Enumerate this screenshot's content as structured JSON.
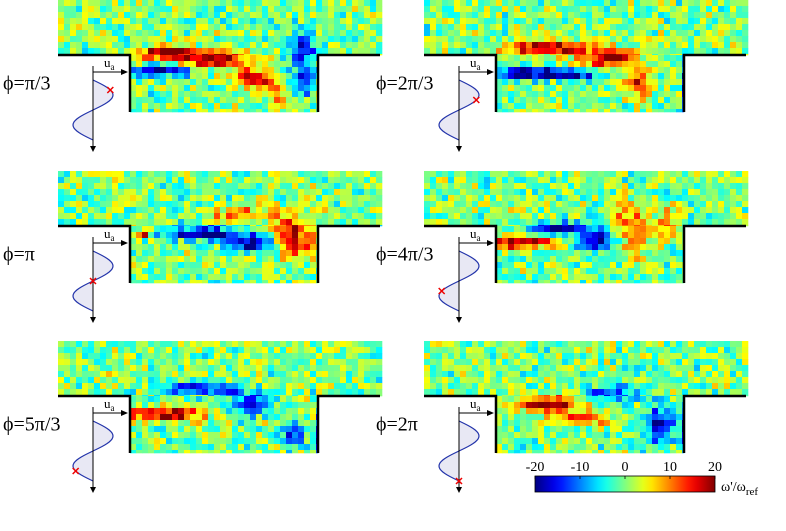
{
  "panels": [
    {
      "phase": "ϕ=π/3",
      "velocity": {
        "base": "u",
        "sub": "a"
      }
    },
    {
      "phase": "ϕ=2π/3",
      "velocity": {
        "base": "u",
        "sub": "a"
      }
    },
    {
      "phase": "ϕ=π",
      "velocity": {
        "base": "u",
        "sub": "a"
      }
    },
    {
      "phase": "ϕ=4π/3",
      "velocity": {
        "base": "u",
        "sub": "a"
      }
    },
    {
      "phase": "ϕ=5π/3",
      "velocity": {
        "base": "u",
        "sub": "a"
      }
    },
    {
      "phase": "ϕ=2π",
      "velocity": {
        "base": "u",
        "sub": "a"
      }
    }
  ],
  "colorbar": {
    "clim": [
      -20,
      20
    ],
    "ticks": [
      -20,
      -10,
      0,
      10,
      20
    ],
    "label": {
      "base": "ω'/ω",
      "sub": "ref"
    },
    "colormap": "jet"
  }
}
